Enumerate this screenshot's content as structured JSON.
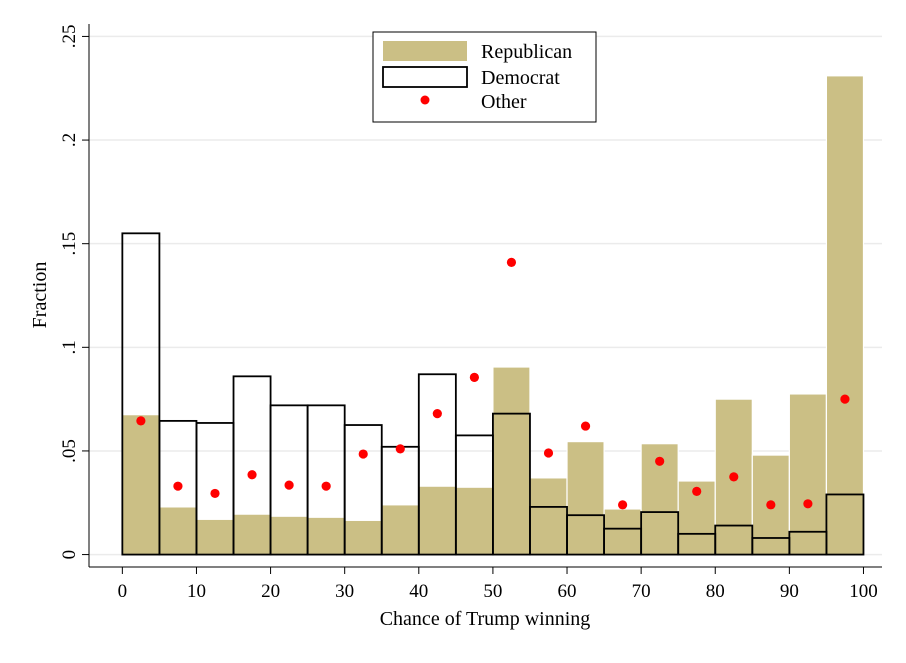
{
  "chart_data": {
    "type": "bar",
    "xlabel": "Chance of Trump winning",
    "ylabel": "Fraction",
    "xlim": [
      -4.5,
      102.5
    ],
    "ylim": [
      -0.006,
      0.256
    ],
    "x_ticks": [
      0,
      10,
      20,
      30,
      40,
      50,
      60,
      70,
      80,
      90,
      100
    ],
    "x_tick_labels": [
      "0",
      "10",
      "20",
      "30",
      "40",
      "50",
      "60",
      "70",
      "80",
      "90",
      "100"
    ],
    "y_ticks": [
      0,
      0.05,
      0.1,
      0.15,
      0.2,
      0.25
    ],
    "y_tick_labels": [
      "0",
      ".05",
      ".1",
      ".15",
      ".2",
      ".25"
    ],
    "grid": "horizontal",
    "legend_position": "top-center",
    "bin_width": 5,
    "bins": [
      0,
      5,
      10,
      15,
      20,
      25,
      30,
      35,
      40,
      45,
      50,
      55,
      60,
      65,
      70,
      75,
      80,
      85,
      90,
      95
    ],
    "series": [
      {
        "name": "Republican",
        "style": "filled-bar",
        "color": "#cbbf85",
        "values": [
          0.0675,
          0.023,
          0.017,
          0.0195,
          0.0185,
          0.018,
          0.0165,
          0.024,
          0.033,
          0.0325,
          0.0905,
          0.037,
          0.0545,
          0.022,
          0.0535,
          0.0355,
          0.075,
          0.048,
          0.0775,
          0.231
        ]
      },
      {
        "name": "Democrat",
        "style": "outline-bar",
        "color": "#000000",
        "values": [
          0.155,
          0.0645,
          0.0635,
          0.086,
          0.072,
          0.072,
          0.0625,
          0.052,
          0.087,
          0.0575,
          0.068,
          0.023,
          0.019,
          0.0125,
          0.0205,
          0.01,
          0.014,
          0.008,
          0.011,
          0.029
        ]
      },
      {
        "name": "Other",
        "style": "point",
        "color": "#ff0000",
        "values": [
          0.0645,
          0.033,
          0.0295,
          0.0385,
          0.0335,
          0.033,
          0.0485,
          0.051,
          0.068,
          0.0855,
          0.141,
          0.049,
          0.062,
          0.024,
          0.045,
          0.0305,
          0.0375,
          0.024,
          0.0245,
          0.075
        ]
      }
    ]
  }
}
